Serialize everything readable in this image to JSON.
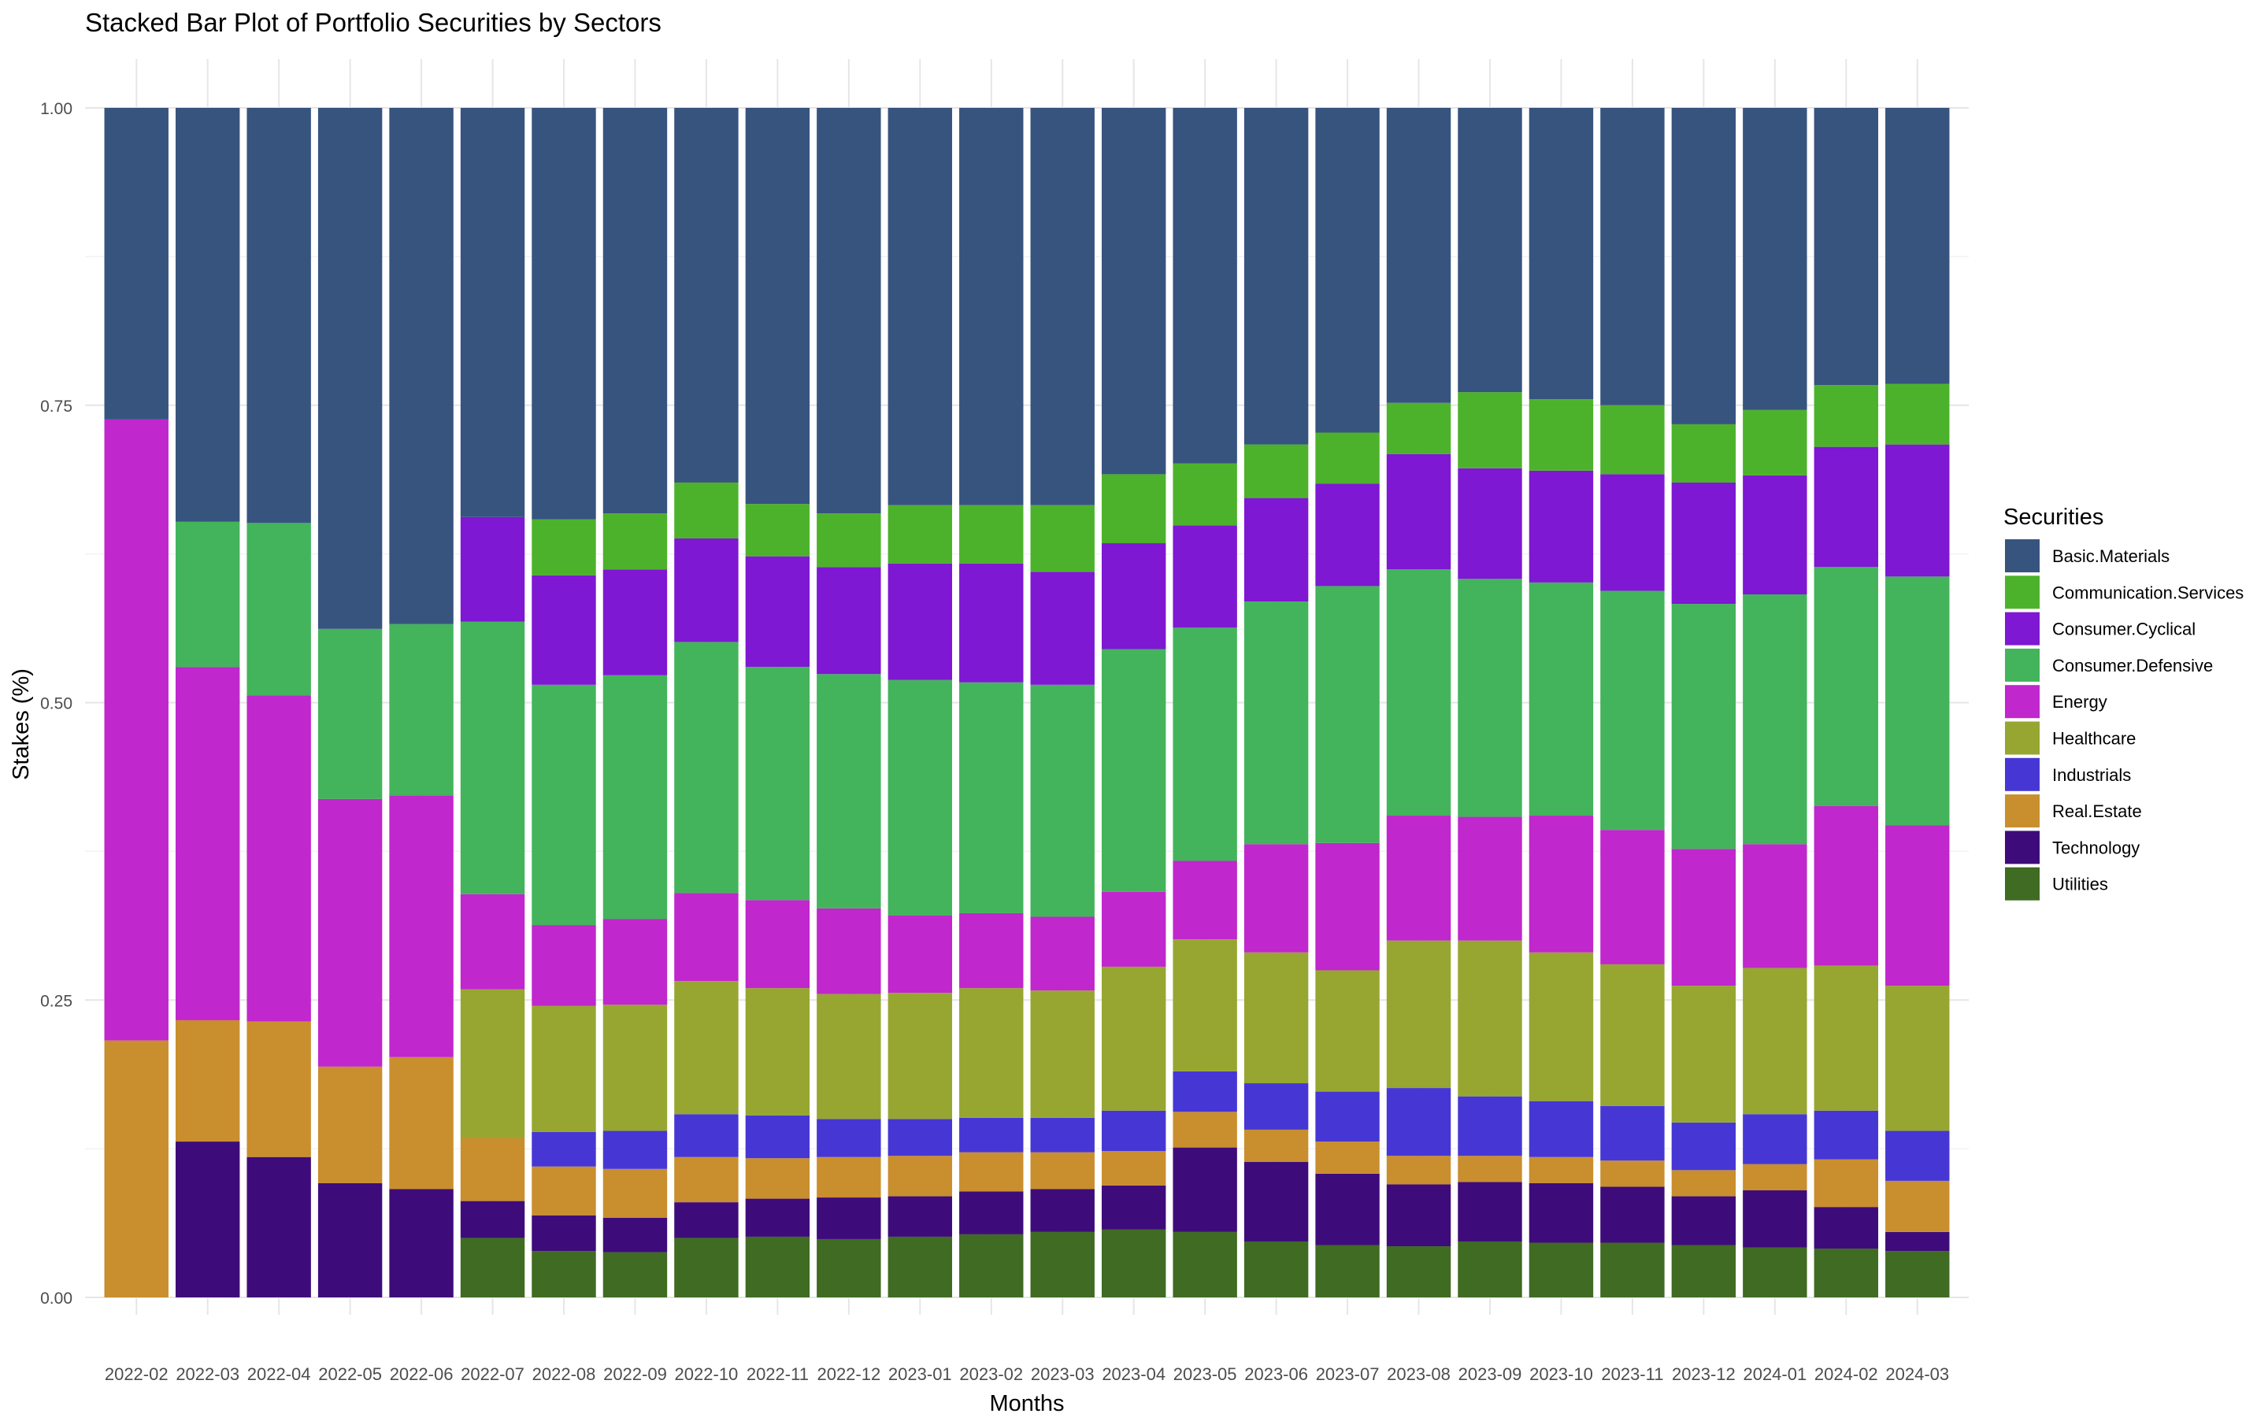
{
  "chart_data": {
    "type": "bar",
    "stacked": true,
    "title": "Stacked Bar Plot of Portfolio Securities by Sectors",
    "xlabel": "Months",
    "ylabel": "Stakes (%)",
    "ylim": [
      0,
      1
    ],
    "yticks": [
      0,
      0.25,
      0.5,
      0.75,
      1
    ],
    "ytick_labels": [
      "0.00",
      "0.25",
      "0.50",
      "0.75",
      "1.00"
    ],
    "grid": true,
    "legend_title": "Securities",
    "legend_position": "right",
    "categories": [
      "2022-02",
      "2022-03",
      "2022-04",
      "2022-05",
      "2022-06",
      "2022-07",
      "2022-08",
      "2022-09",
      "2022-10",
      "2022-11",
      "2022-12",
      "2023-01",
      "2023-02",
      "2023-03",
      "2023-04",
      "2023-05",
      "2023-06",
      "2023-07",
      "2023-08",
      "2023-09",
      "2023-10",
      "2023-11",
      "2023-12",
      "2024-01",
      "2024-02",
      "2024-03"
    ],
    "series": [
      {
        "name": "Utilities",
        "color": "#3F6B22",
        "values": [
          0,
          0,
          0,
          0,
          0,
          0.05,
          0.039,
          0.038,
          0.05,
          0.051,
          0.049,
          0.051,
          0.053,
          0.055,
          0.057,
          0.055,
          0.047,
          0.044,
          0.043,
          0.047,
          0.046,
          0.046,
          0.044,
          0.042,
          0.041,
          0.039
        ]
      },
      {
        "name": "Technology",
        "color": "#3E0C7A",
        "values": [
          0,
          0.131,
          0.118,
          0.096,
          0.091,
          0.031,
          0.03,
          0.029,
          0.03,
          0.032,
          0.035,
          0.034,
          0.036,
          0.036,
          0.037,
          0.071,
          0.067,
          0.06,
          0.052,
          0.05,
          0.05,
          0.047,
          0.041,
          0.048,
          0.035,
          0.016
        ]
      },
      {
        "name": "Real.Estate",
        "color": "#C98E2E",
        "values": [
          0.216,
          0.102,
          0.114,
          0.098,
          0.111,
          0.053,
          0.041,
          0.041,
          0.038,
          0.034,
          0.034,
          0.034,
          0.033,
          0.031,
          0.029,
          0.03,
          0.027,
          0.027,
          0.024,
          0.022,
          0.022,
          0.022,
          0.022,
          0.022,
          0.04,
          0.043
        ]
      },
      {
        "name": "Industrials",
        "color": "#4637D4",
        "values": [
          0,
          0,
          0,
          0,
          0,
          0,
          0.029,
          0.032,
          0.036,
          0.036,
          0.032,
          0.031,
          0.029,
          0.029,
          0.034,
          0.034,
          0.039,
          0.042,
          0.057,
          0.05,
          0.047,
          0.046,
          0.04,
          0.042,
          0.041,
          0.042
        ]
      },
      {
        "name": "Healthcare",
        "color": "#97A631",
        "values": [
          0,
          0,
          0,
          0,
          0,
          0.125,
          0.106,
          0.106,
          0.112,
          0.107,
          0.105,
          0.106,
          0.109,
          0.107,
          0.121,
          0.111,
          0.11,
          0.102,
          0.124,
          0.131,
          0.125,
          0.119,
          0.115,
          0.123,
          0.122,
          0.122
        ]
      },
      {
        "name": "Energy",
        "color": "#C027CC",
        "values": [
          0.522,
          0.297,
          0.274,
          0.225,
          0.22,
          0.08,
          0.068,
          0.072,
          0.074,
          0.074,
          0.072,
          0.065,
          0.063,
          0.062,
          0.063,
          0.066,
          0.091,
          0.107,
          0.105,
          0.104,
          0.115,
          0.113,
          0.115,
          0.104,
          0.134,
          0.135
        ]
      },
      {
        "name": "Consumer.Defensive",
        "color": "#43B45B",
        "values": [
          0,
          0.122,
          0.145,
          0.143,
          0.144,
          0.229,
          0.202,
          0.205,
          0.211,
          0.196,
          0.197,
          0.198,
          0.194,
          0.195,
          0.204,
          0.196,
          0.204,
          0.216,
          0.207,
          0.2,
          0.196,
          0.201,
          0.206,
          0.21,
          0.201,
          0.209
        ]
      },
      {
        "name": "Consumer.Cyclical",
        "color": "#7E18D2",
        "values": [
          0,
          0,
          0,
          0,
          0,
          0.088,
          0.092,
          0.089,
          0.087,
          0.093,
          0.09,
          0.098,
          0.1,
          0.095,
          0.089,
          0.086,
          0.087,
          0.086,
          0.097,
          0.093,
          0.094,
          0.098,
          0.102,
          0.1,
          0.101,
          0.111
        ]
      },
      {
        "name": "Communication.Services",
        "color": "#4DB22B",
        "values": [
          0,
          0,
          0,
          0,
          0,
          0,
          0.047,
          0.047,
          0.047,
          0.044,
          0.045,
          0.049,
          0.049,
          0.056,
          0.058,
          0.052,
          0.045,
          0.043,
          0.043,
          0.064,
          0.06,
          0.058,
          0.049,
          0.055,
          0.052,
          0.051
        ]
      },
      {
        "name": "Basic.Materials",
        "color": "#37547F",
        "values": [
          0.262,
          0.348,
          0.349,
          0.438,
          0.434,
          0.344,
          0.346,
          0.341,
          0.315,
          0.333,
          0.341,
          0.334,
          0.334,
          0.334,
          0.308,
          0.299,
          0.283,
          0.273,
          0.248,
          0.239,
          0.245,
          0.25,
          0.266,
          0.254,
          0.233,
          0.232
        ]
      }
    ],
    "legend_order": [
      "Basic.Materials",
      "Communication.Services",
      "Consumer.Cyclical",
      "Consumer.Defensive",
      "Energy",
      "Healthcare",
      "Industrials",
      "Real.Estate",
      "Technology",
      "Utilities"
    ]
  }
}
